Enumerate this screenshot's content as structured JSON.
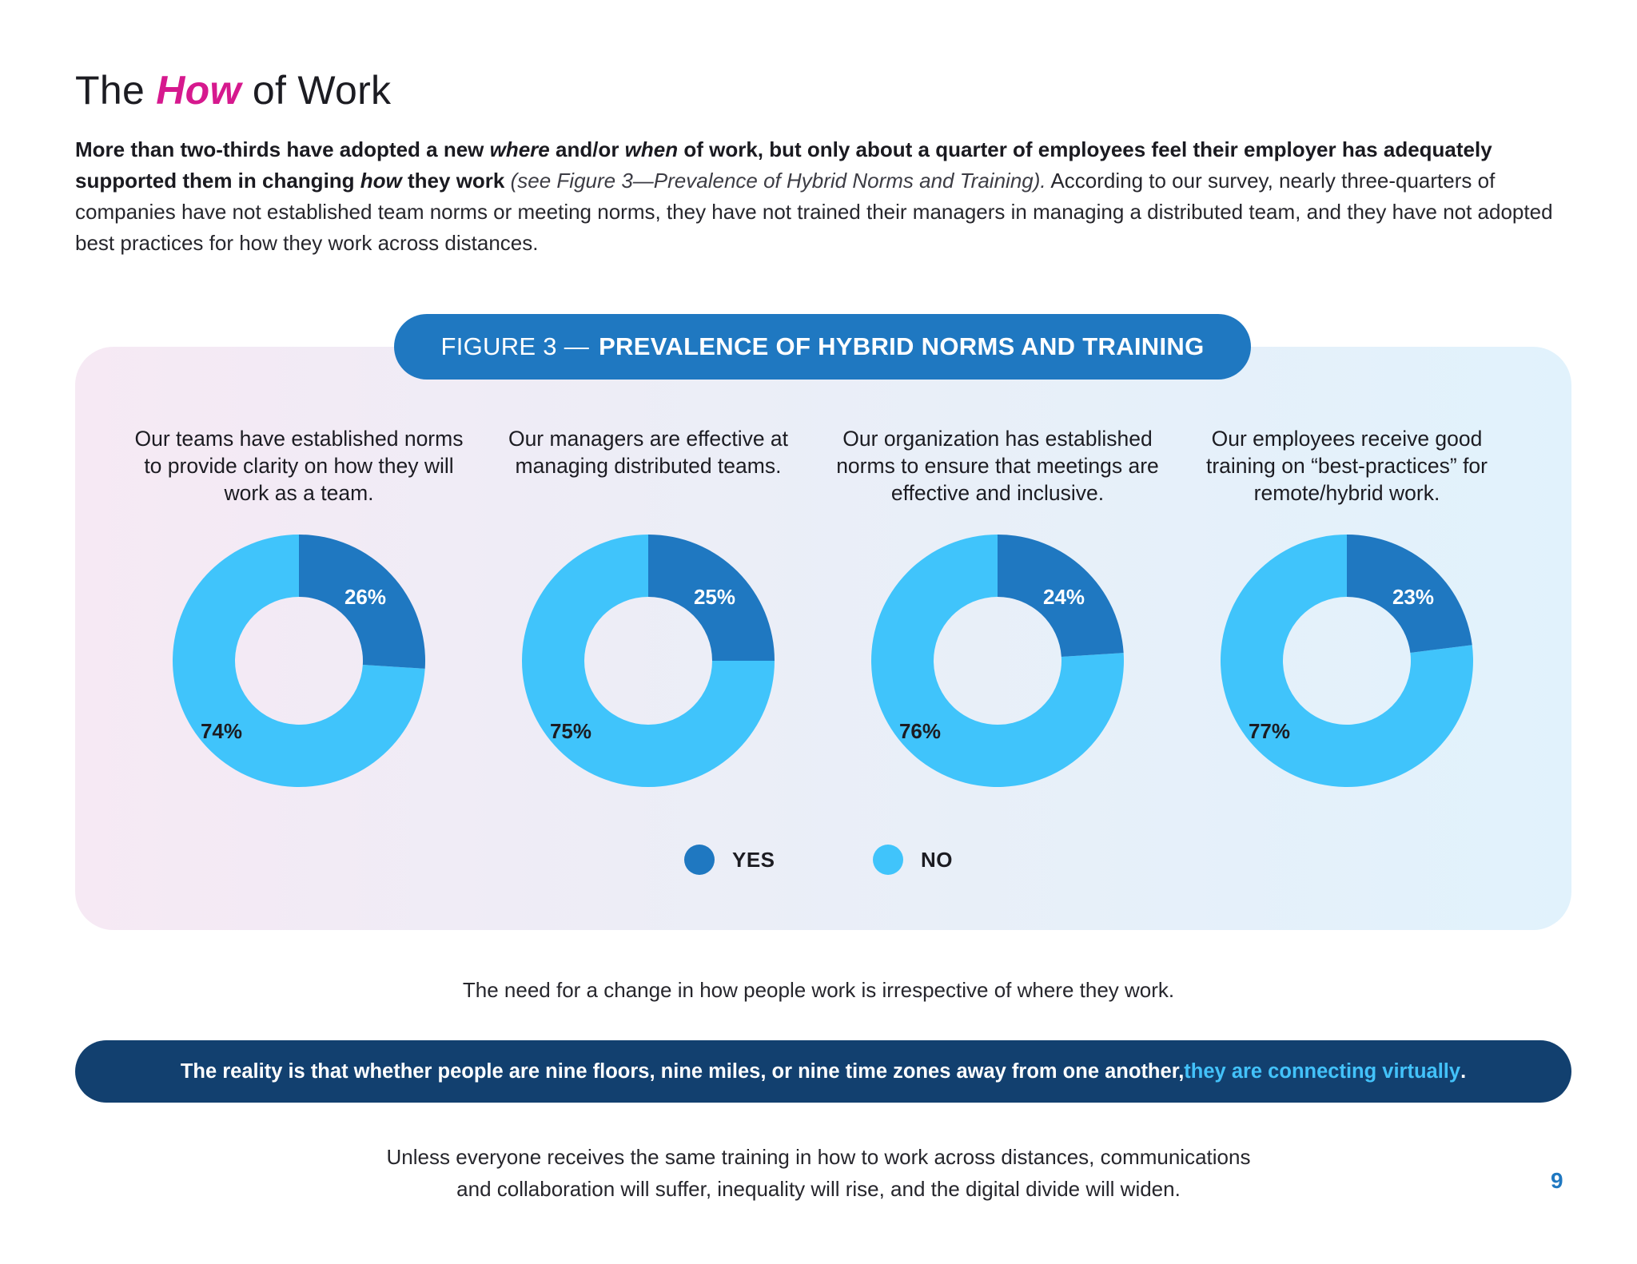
{
  "page": {
    "title_pre": "The ",
    "title_accent": "How",
    "title_post": " of Work",
    "intro": {
      "p1": "More than two-thirds have adopted a new ",
      "p2": "where",
      "p3": " and/or ",
      "p4": "when",
      "p5": " of work, but only about a quarter of employees feel their employer has adequately supported them in changing ",
      "p6": "how",
      "p7": " they work",
      "ref": "(see Figure 3—Prevalence of Hybrid Norms and Training).",
      "rest": " According to our survey, nearly three-quarters of companies have not established team norms or meeting norms, they have not trained their managers in managing a distributed team, and they have not adopted best practices for how they work across distances."
    },
    "figure_lead": "FIGURE 3 —",
    "figure_name": "PREVALENCE OF HYBRID NORMS AND TRAINING",
    "note": "The need for a change in how people work is irrespective of where they work.",
    "banner_text": "The reality is that whether people are nine floors, nine miles, or nine time zones away from one another, ",
    "banner_highlight": "they are connecting virtually",
    "banner_end": ".",
    "closing_line1": "Unless everyone receives the same training in how to work across distances, communications",
    "closing_line2": "and collaboration will suffer, inequality will rise, and the digital divide will widen.",
    "page_number": "9"
  },
  "chart_data": {
    "type": "pie",
    "title": "FIGURE 3 — PREVALENCE OF HYBRID NORMS AND TRAINING",
    "legend": [
      {
        "label": "YES",
        "color": "#1f78c1"
      },
      {
        "label": "NO",
        "color": "#40c4fb"
      }
    ],
    "legend_position": "bottom",
    "charts": [
      {
        "question": "Our teams have established norms to provide clarity on how they will work as a team.",
        "yes": 26,
        "no": 74,
        "yes_label": "26%",
        "no_label": "74%"
      },
      {
        "question": "Our managers are effective at managing distributed teams.",
        "yes": 25,
        "no": 75,
        "yes_label": "25%",
        "no_label": "75%"
      },
      {
        "question": "Our organization has established norms to ensure that meetings are effective and inclusive.",
        "yes": 24,
        "no": 76,
        "yes_label": "24%",
        "no_label": "76%"
      },
      {
        "question": "Our employees receive good training on “best-practices” for remote/hybrid work.",
        "yes": 23,
        "no": 77,
        "yes_label": "23%",
        "no_label": "77%"
      }
    ]
  }
}
